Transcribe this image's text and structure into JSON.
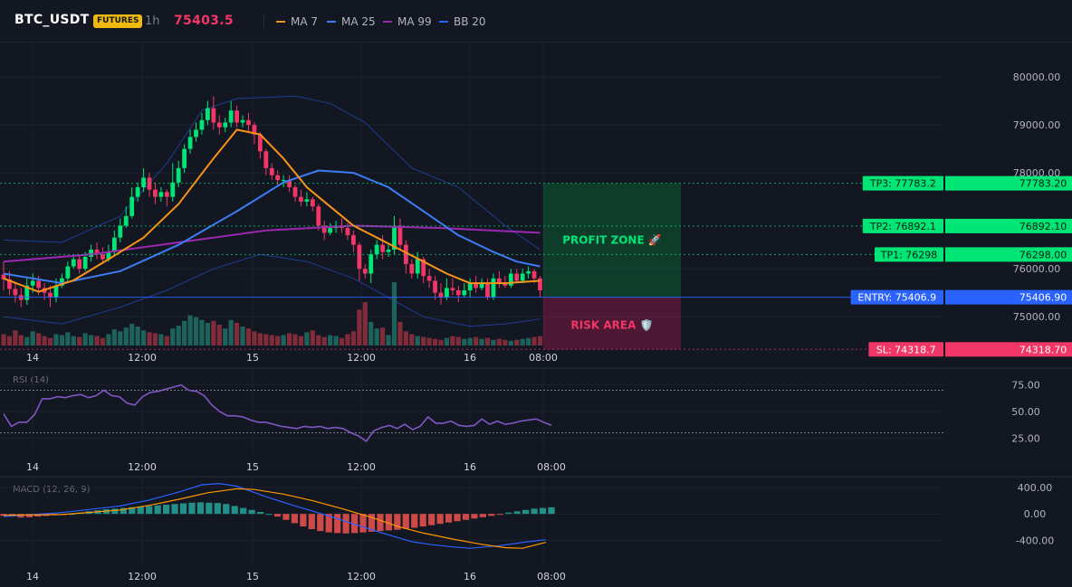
{
  "header": {
    "symbol": "BTC_USDT",
    "badge": "FUTURES",
    "timeframe": "1h",
    "last_price": "75403.5",
    "indicators": [
      {
        "label": "MA 7",
        "color": "#f7931a"
      },
      {
        "label": "MA 25",
        "color": "#3c7cf5"
      },
      {
        "label": "MA 99",
        "color": "#9c27b0"
      },
      {
        "label": "BB 20",
        "color": "#2962ff"
      }
    ]
  },
  "colors": {
    "up": "#26a69a",
    "up_bright": "#00e676",
    "down": "#f23666",
    "grid": "#1e222d",
    "background": "#131722"
  },
  "time_labels": [
    "14",
    "12:00",
    "15",
    "12:00",
    "16",
    "08:00"
  ],
  "chart_data": [
    {
      "type": "candlestick",
      "title": "",
      "y_ticks": [
        "80000.00",
        "79000.00",
        "78000.00",
        "76000.00",
        "75000.00"
      ],
      "ylim": [
        74400,
        80700
      ],
      "candles": [
        [
          75880,
          75780,
          76150,
          75550
        ],
        [
          75780,
          75580,
          75950,
          75450
        ],
        [
          75580,
          75450,
          75700,
          75300
        ],
        [
          75450,
          75350,
          75600,
          75200
        ],
        [
          75350,
          75650,
          75800,
          75250
        ],
        [
          75650,
          75750,
          75900,
          75500
        ],
        [
          75750,
          75600,
          75850,
          75450
        ],
        [
          75600,
          75500,
          75700,
          75350
        ],
        [
          75500,
          75400,
          75650,
          75200
        ],
        [
          75400,
          75650,
          75800,
          75300
        ],
        [
          75650,
          75800,
          75900,
          75600
        ],
        [
          75800,
          76050,
          76150,
          75700
        ],
        [
          76050,
          76200,
          76300,
          76000
        ],
        [
          76200,
          76000,
          76300,
          75900
        ],
        [
          76000,
          76250,
          76350,
          75950
        ],
        [
          76250,
          76400,
          76500,
          76150
        ],
        [
          76400,
          76300,
          76550,
          76200
        ],
        [
          76300,
          76200,
          76450,
          76100
        ],
        [
          76200,
          76350,
          76500,
          76150
        ],
        [
          76350,
          76650,
          76800,
          76300
        ],
        [
          76650,
          76900,
          77050,
          76550
        ],
        [
          76900,
          77100,
          77300,
          76850
        ],
        [
          77100,
          77500,
          77700,
          77050
        ],
        [
          77500,
          77700,
          77800,
          77400
        ],
        [
          77700,
          77900,
          78100,
          77600
        ],
        [
          77900,
          77650,
          78000,
          77500
        ],
        [
          77650,
          77500,
          77800,
          77350
        ],
        [
          77500,
          77600,
          77700,
          77400
        ],
        [
          77600,
          77500,
          77650,
          77300
        ],
        [
          77500,
          77800,
          78200,
          77400
        ],
        [
          77800,
          78100,
          78250,
          77700
        ],
        [
          78100,
          78500,
          78600,
          78000
        ],
        [
          78500,
          78750,
          78900,
          78400
        ],
        [
          78750,
          78900,
          79050,
          78650
        ],
        [
          78900,
          79100,
          79250,
          78800
        ],
        [
          79100,
          79350,
          79500,
          79000
        ],
        [
          79350,
          79050,
          79600,
          78900
        ],
        [
          79050,
          78950,
          79200,
          78800
        ],
        [
          78950,
          79050,
          79150,
          78850
        ],
        [
          79050,
          79300,
          79500,
          78950
        ],
        [
          79300,
          79050,
          79400,
          78950
        ],
        [
          79050,
          79100,
          79200,
          78950
        ],
        [
          79100,
          79000,
          79250,
          78850
        ],
        [
          79000,
          78800,
          79050,
          78600
        ],
        [
          78800,
          78450,
          78850,
          78300
        ],
        [
          78450,
          78100,
          78500,
          77950
        ],
        [
          78100,
          77950,
          78200,
          77850
        ],
        [
          77950,
          77850,
          78050,
          77750
        ],
        [
          77850,
          77850,
          77950,
          77700
        ],
        [
          77850,
          77700,
          77950,
          77600
        ],
        [
          77700,
          77500,
          77750,
          77400
        ],
        [
          77500,
          77400,
          77650,
          77300
        ],
        [
          77400,
          77450,
          77600,
          77300
        ],
        [
          77450,
          77300,
          77500,
          77200
        ],
        [
          77300,
          76900,
          77350,
          76800
        ],
        [
          76900,
          76750,
          77000,
          76600
        ],
        [
          76750,
          76850,
          76950,
          76700
        ],
        [
          76850,
          76900,
          77000,
          76750
        ],
        [
          76900,
          76850,
          77050,
          76750
        ],
        [
          76850,
          76700,
          76950,
          76600
        ],
        [
          76700,
          76500,
          76800,
          76350
        ],
        [
          76500,
          76000,
          76550,
          75750
        ],
        [
          76000,
          75900,
          76100,
          75800
        ],
        [
          75900,
          76300,
          76400,
          75700
        ],
        [
          76300,
          76500,
          76600,
          76200
        ],
        [
          76500,
          76350,
          76700,
          76200
        ],
        [
          76350,
          76400,
          76500,
          76250
        ],
        [
          76400,
          76900,
          77100,
          76300
        ],
        [
          76900,
          76500,
          77050,
          76400
        ],
        [
          76500,
          76100,
          76600,
          75900
        ],
        [
          76100,
          75900,
          76200,
          75800
        ],
        [
          75900,
          76200,
          76350,
          75800
        ],
        [
          76200,
          75850,
          76250,
          75700
        ],
        [
          75850,
          75750,
          76000,
          75600
        ],
        [
          75750,
          75500,
          75850,
          75350
        ],
        [
          75500,
          75400,
          75700,
          75250
        ],
        [
          75400,
          75600,
          75800,
          75350
        ],
        [
          75600,
          75550,
          75800,
          75450
        ],
        [
          75550,
          75450,
          75650,
          75300
        ],
        [
          75450,
          75550,
          75700,
          75400
        ],
        [
          75550,
          75700,
          75800,
          75400
        ],
        [
          75700,
          75600,
          75850,
          75500
        ],
        [
          75600,
          75700,
          75800,
          75550
        ],
        [
          75700,
          75400,
          75800,
          75350
        ],
        [
          75400,
          75800,
          75900,
          75350
        ],
        [
          75800,
          75700,
          75950,
          75600
        ],
        [
          75700,
          75650,
          75850,
          75600
        ],
        [
          75650,
          75900,
          76000,
          75600
        ],
        [
          75900,
          75750,
          76000,
          75700
        ],
        [
          75750,
          75900,
          76000,
          75700
        ],
        [
          75900,
          75950,
          76050,
          75800
        ],
        [
          75950,
          75800,
          76000,
          75700
        ],
        [
          75800,
          75550,
          75850,
          75400
        ]
      ],
      "volume": [
        1.2,
        1.0,
        1.6,
        1.1,
        0.9,
        1.5,
        1.3,
        1.0,
        0.8,
        1.2,
        1.1,
        1.4,
        1.0,
        0.9,
        1.3,
        1.1,
        1.0,
        0.8,
        1.2,
        1.7,
        1.5,
        1.9,
        2.3,
        2.0,
        1.6,
        1.4,
        1.3,
        1.2,
        1.0,
        1.8,
        2.1,
        2.6,
        3.2,
        3.0,
        2.7,
        2.4,
        2.6,
        2.2,
        1.8,
        2.7,
        2.4,
        2.0,
        1.8,
        1.5,
        1.3,
        1.2,
        1.1,
        1.0,
        1.1,
        1.3,
        1.2,
        1.0,
        1.4,
        1.6,
        1.1,
        0.9,
        1.1,
        1.0,
        0.8,
        1.2,
        1.5,
        3.8,
        4.6,
        2.5,
        1.8,
        1.9,
        1.1,
        6.7,
        2.5,
        1.5,
        1.2,
        1.0,
        0.9,
        0.8,
        0.7,
        0.6,
        0.8,
        1.0,
        0.9,
        0.7,
        0.8,
        0.9,
        0.7,
        0.8,
        0.6,
        0.7,
        0.6,
        0.5,
        0.6,
        0.7,
        0.8,
        0.9,
        1.0
      ],
      "ma7": [
        [
          0,
          75800
        ],
        [
          6,
          75520
        ],
        [
          12,
          75760
        ],
        [
          18,
          76200
        ],
        [
          24,
          76650
        ],
        [
          30,
          77350
        ],
        [
          36,
          78300
        ],
        [
          40,
          78900
        ],
        [
          44,
          78800
        ],
        [
          48,
          78300
        ],
        [
          52,
          77700
        ],
        [
          56,
          77300
        ],
        [
          60,
          76900
        ],
        [
          64,
          76650
        ],
        [
          68,
          76400
        ],
        [
          72,
          76150
        ],
        [
          76,
          75900
        ],
        [
          80,
          75700
        ],
        [
          86,
          75700
        ],
        [
          92,
          75750
        ]
      ],
      "ma25": [
        [
          0,
          75900
        ],
        [
          10,
          75700
        ],
        [
          20,
          75950
        ],
        [
          30,
          76500
        ],
        [
          40,
          77200
        ],
        [
          48,
          77800
        ],
        [
          54,
          78050
        ],
        [
          60,
          78000
        ],
        [
          66,
          77700
        ],
        [
          72,
          77200
        ],
        [
          78,
          76700
        ],
        [
          84,
          76350
        ],
        [
          88,
          76150
        ],
        [
          92,
          76050
        ]
      ],
      "ma99": [
        [
          0,
          76150
        ],
        [
          15,
          76300
        ],
        [
          30,
          76550
        ],
        [
          45,
          76800
        ],
        [
          60,
          76900
        ],
        [
          75,
          76850
        ],
        [
          92,
          76750
        ]
      ],
      "bb_upper": [
        [
          0,
          76600
        ],
        [
          10,
          76550
        ],
        [
          20,
          77100
        ],
        [
          28,
          78200
        ],
        [
          34,
          79300
        ],
        [
          40,
          79550
        ],
        [
          50,
          79600
        ],
        [
          56,
          79450
        ],
        [
          62,
          79050
        ],
        [
          70,
          78100
        ],
        [
          78,
          77700
        ],
        [
          86,
          76900
        ],
        [
          92,
          76400
        ]
      ],
      "bb_lower": [
        [
          0,
          75000
        ],
        [
          10,
          74850
        ],
        [
          20,
          75200
        ],
        [
          28,
          75550
        ],
        [
          36,
          76000
        ],
        [
          44,
          76300
        ],
        [
          52,
          76150
        ],
        [
          60,
          75800
        ],
        [
          66,
          75400
        ],
        [
          72,
          75000
        ],
        [
          80,
          74800
        ],
        [
          86,
          74850
        ],
        [
          92,
          74950
        ]
      ],
      "levels": [
        {
          "tag": "TP3: 77783.2",
          "value": "77783.20",
          "y": 77783.2,
          "color": "#00e676",
          "text_color": "#0b1e12"
        },
        {
          "tag": "TP2: 76892.1",
          "value": "76892.10",
          "y": 76892.1,
          "color": "#00e676",
          "text_color": "#0b1e12"
        },
        {
          "tag": "TP1: 76298",
          "value": "76298.00",
          "y": 76298,
          "color": "#00e676",
          "text_color": "#0b1e12"
        },
        {
          "tag": "ENTRY: 75406.9",
          "value": "75406.90",
          "y": 75406.9,
          "color": "#2962ff",
          "text_color": "#ffffff"
        },
        {
          "tag": "SL: 74318.7",
          "value": "74318.70",
          "y": 74318.7,
          "color": "#f23666",
          "text_color": "#ffffff"
        }
      ],
      "profit_zone_label": "PROFIT ZONE 🚀",
      "risk_area_label": "RISK AREA 🛡️"
    },
    {
      "type": "line",
      "title": "RSI (14)",
      "y_ticks": [
        "75.00",
        "50.00",
        "25.00"
      ],
      "ylim": [
        10,
        90
      ],
      "overbought": 70,
      "oversold": 30,
      "series": [
        {
          "values": [
            48,
            36,
            40,
            40,
            47,
            62,
            62,
            64,
            63,
            65,
            66,
            63,
            65,
            70,
            65,
            64,
            58,
            56,
            64,
            68,
            69,
            71,
            73,
            75,
            70,
            69,
            65,
            56,
            50,
            46,
            46,
            45,
            42,
            40,
            40,
            38,
            36,
            35,
            34,
            36,
            35,
            36,
            34,
            35,
            34,
            30,
            27,
            22,
            32,
            35,
            37,
            34,
            38,
            33,
            36,
            45,
            39,
            39,
            41,
            37,
            36,
            37,
            43,
            38,
            41,
            38,
            39,
            41,
            42,
            43,
            40,
            37
          ]
        }
      ]
    },
    {
      "type": "bar+line",
      "title": "MACD (12, 26, 9)",
      "y_ticks": [
        "400.00",
        "0.00",
        "-400.00"
      ],
      "ylim": [
        -750,
        550
      ],
      "histogram": [
        -30,
        -40,
        -55,
        -50,
        -40,
        -30,
        -20,
        -10,
        0,
        20,
        40,
        55,
        70,
        80,
        90,
        100,
        110,
        120,
        130,
        140,
        150,
        160,
        170,
        175,
        170,
        165,
        150,
        120,
        90,
        60,
        30,
        0,
        -40,
        -90,
        -140,
        -190,
        -230,
        -260,
        -280,
        -290,
        -295,
        -290,
        -280,
        -270,
        -260,
        -250,
        -240,
        -225,
        -210,
        -190,
        -170,
        -150,
        -130,
        -110,
        -90,
        -70,
        -50,
        -30,
        -10,
        20,
        40,
        60,
        80,
        90,
        100
      ],
      "macd_line": [
        [
          0,
          -40
        ],
        [
          10,
          20
        ],
        [
          20,
          120
        ],
        [
          25,
          210
        ],
        [
          30,
          330
        ],
        [
          34,
          440
        ],
        [
          37,
          460
        ],
        [
          40,
          420
        ],
        [
          45,
          260
        ],
        [
          50,
          120
        ],
        [
          55,
          -10
        ],
        [
          60,
          -150
        ],
        [
          65,
          -290
        ],
        [
          70,
          -420
        ],
        [
          73,
          -460
        ],
        [
          77,
          -500
        ],
        [
          80,
          -520
        ],
        [
          85,
          -480
        ],
        [
          90,
          -420
        ],
        [
          93,
          -390
        ]
      ],
      "signal_line": [
        [
          0,
          -20
        ],
        [
          10,
          -10
        ],
        [
          20,
          60
        ],
        [
          25,
          130
        ],
        [
          30,
          220
        ],
        [
          35,
          320
        ],
        [
          40,
          380
        ],
        [
          43,
          370
        ],
        [
          48,
          300
        ],
        [
          53,
          200
        ],
        [
          58,
          80
        ],
        [
          63,
          -50
        ],
        [
          68,
          -200
        ],
        [
          72,
          -290
        ],
        [
          77,
          -380
        ],
        [
          82,
          -460
        ],
        [
          86,
          -510
        ],
        [
          89,
          -520
        ],
        [
          93,
          -430
        ]
      ]
    }
  ]
}
